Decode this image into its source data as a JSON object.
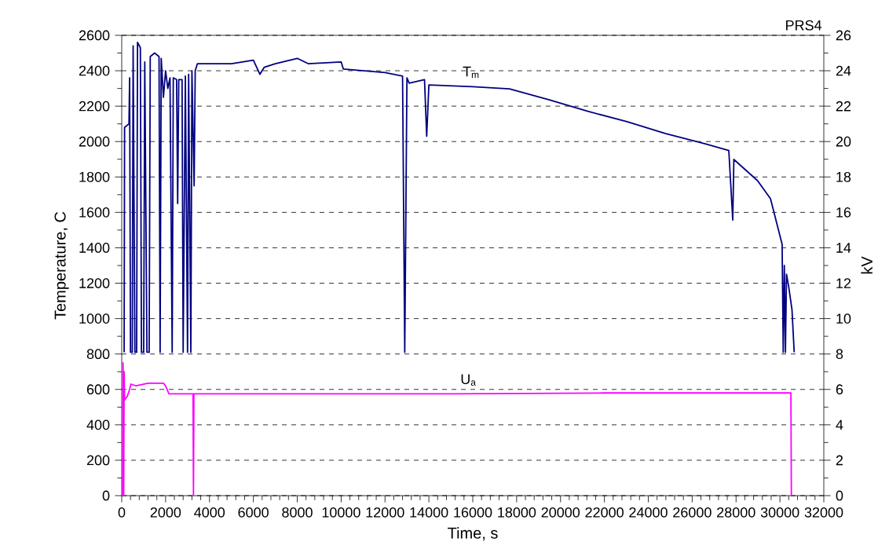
{
  "chart_data": {
    "type": "line",
    "xlabel": "Time, s",
    "ylabel": "Temperature, C",
    "y2label": "kV",
    "annotations": [
      "PRS4"
    ],
    "xlim": [
      0,
      32000
    ],
    "xticks": [
      0,
      2000,
      4000,
      6000,
      8000,
      10000,
      12000,
      14000,
      16000,
      18000,
      20000,
      22000,
      24000,
      26000,
      28000,
      30000,
      32000
    ],
    "ylim": [
      0,
      2600
    ],
    "yticks": [
      0,
      200,
      400,
      600,
      800,
      1000,
      1200,
      1400,
      1600,
      1800,
      2000,
      2200,
      2400,
      2600
    ],
    "y2lim": [
      0,
      26
    ],
    "y2ticks": [
      0,
      2,
      4,
      6,
      8,
      10,
      12,
      14,
      16,
      18,
      20,
      22,
      24,
      26
    ],
    "grid": "y",
    "legend": false,
    "marker": "none",
    "line_style": "solid",
    "series": [
      {
        "name": "T$_{m}$",
        "color": "#000080",
        "x": [
          110,
          130,
          330,
          360,
          400,
          480,
          520,
          600,
          680,
          720,
          850,
          900,
          1000,
          1050,
          1150,
          1250,
          1300,
          1500,
          1700,
          1750,
          1800,
          1900,
          2000,
          2100,
          2200,
          2300,
          2350,
          2500,
          2550,
          2600,
          2750,
          2800,
          2900,
          3000,
          3050,
          3150,
          3200,
          3300,
          3350,
          3450,
          5000,
          6000,
          6300,
          6500,
          7000,
          8000,
          8500,
          10000,
          10100,
          12000,
          12800,
          12900,
          13000,
          13100,
          13800,
          13900,
          14000,
          16000,
          17670,
          19460,
          21240,
          23030,
          24800,
          26600,
          27670,
          27850,
          27900,
          28980,
          29570,
          30100,
          30150,
          30200,
          30250,
          30300,
          30400,
          30550,
          30650
        ],
        "values": [
          810,
          2080,
          2100,
          2360,
          810,
          810,
          2540,
          810,
          810,
          2560,
          2530,
          810,
          810,
          2450,
          810,
          810,
          2480,
          2500,
          2480,
          810,
          2470,
          2250,
          2400,
          2300,
          2360,
          810,
          2360,
          2350,
          1650,
          2350,
          2350,
          810,
          2370,
          810,
          2380,
          810,
          2400,
          1750,
          2400,
          2440,
          2440,
          2460,
          2380,
          2420,
          2440,
          2470,
          2440,
          2450,
          2410,
          2390,
          2370,
          810,
          2360,
          2330,
          2350,
          2030,
          2320,
          2310,
          2298,
          2237,
          2171,
          2112,
          2045,
          1987,
          1949,
          1557,
          1899,
          1779,
          1677,
          1420,
          810,
          1300,
          810,
          1250,
          1180,
          1050,
          810
        ]
      },
      {
        "name": "U$_{a}$",
        "color": "#ff00ff",
        "axis": "y2",
        "x": [
          40,
          60,
          90,
          110,
          130,
          250,
          360,
          420,
          650,
          1200,
          1900,
          2000,
          2150,
          3250,
          3270,
          3290,
          15000,
          22000,
          30500,
          30520
        ],
        "values": [
          0,
          7.5,
          0,
          7,
          5.4,
          5.6,
          6.0,
          6.3,
          6.2,
          6.35,
          6.35,
          6.2,
          5.75,
          5.75,
          0,
          5.75,
          5.75,
          5.8,
          5.8,
          0
        ]
      }
    ]
  }
}
